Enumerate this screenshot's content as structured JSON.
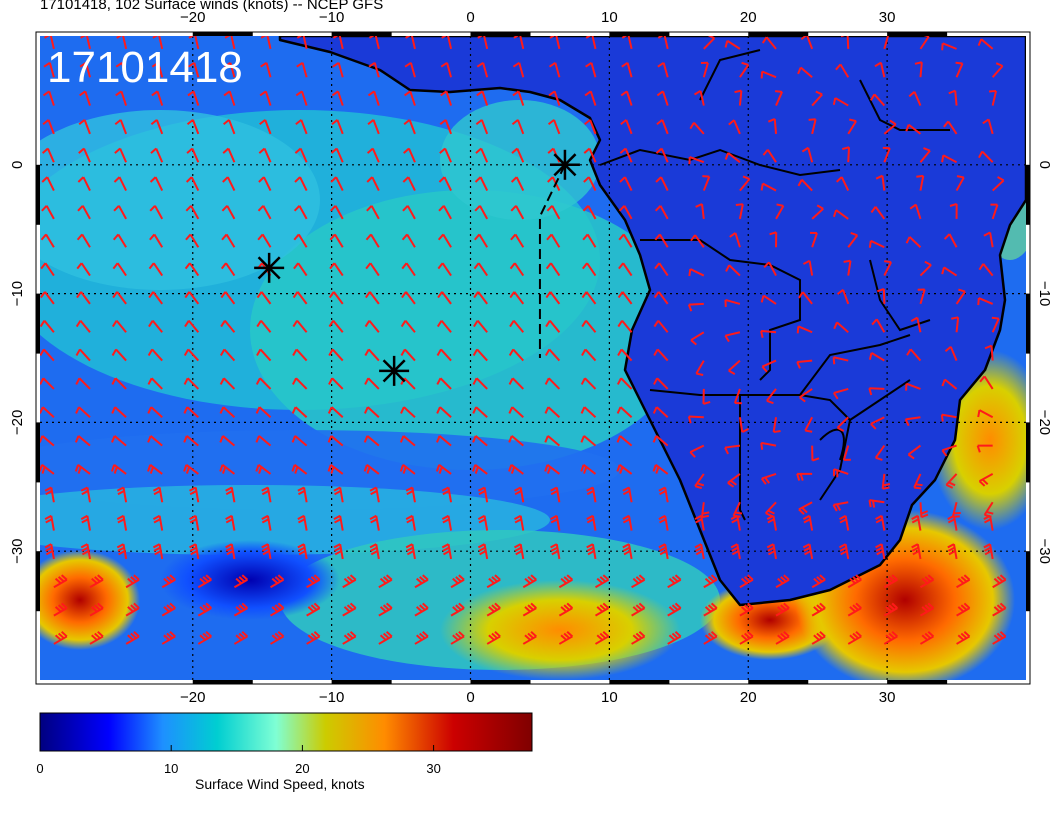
{
  "title": "17101418, 102 Surface winds (knots) -- NCEP GFS",
  "stamp": "17101418",
  "map": {
    "lon_range": [
      -31,
      40
    ],
    "lat_range": [
      -40,
      10
    ],
    "lon_ticks": [
      -20,
      -10,
      0,
      10,
      20,
      30
    ],
    "lat_ticks": [
      0,
      -10,
      -20,
      -30
    ],
    "lon_tick_labels": [
      "−20",
      "−10",
      "0",
      "10",
      "20",
      "30"
    ],
    "lat_tick_labels": [
      "0",
      "−10",
      "−20",
      "−30"
    ],
    "gridlines": "dotted",
    "markers": [
      {
        "lon": -14.5,
        "lat": -8.0,
        "symbol": "asterisk"
      },
      {
        "lon": -5.5,
        "lat": -16.0,
        "symbol": "asterisk"
      },
      {
        "lon": 6.8,
        "lat": 0.0,
        "symbol": "asterisk"
      }
    ],
    "flight_track": {
      "style": "dashed",
      "points": [
        [
          6.8,
          0.0
        ],
        [
          5.0,
          -4.0
        ],
        [
          5.0,
          -15.0
        ]
      ]
    },
    "barb_color": "#ff1a1a",
    "land_outline_color": "#000000"
  },
  "colorbar": {
    "label": "Surface Wind Speed, knots",
    "min": 0,
    "max": 37.5,
    "ticks": [
      0,
      10,
      20,
      30
    ],
    "tick_labels": [
      "0",
      "10",
      "20",
      "30"
    ],
    "colormap": [
      "#000080",
      "#0000ff",
      "#1e90ff",
      "#00ced1",
      "#7fffd4",
      "#cccc00",
      "#ff8c00",
      "#cc0000",
      "#800000"
    ]
  }
}
